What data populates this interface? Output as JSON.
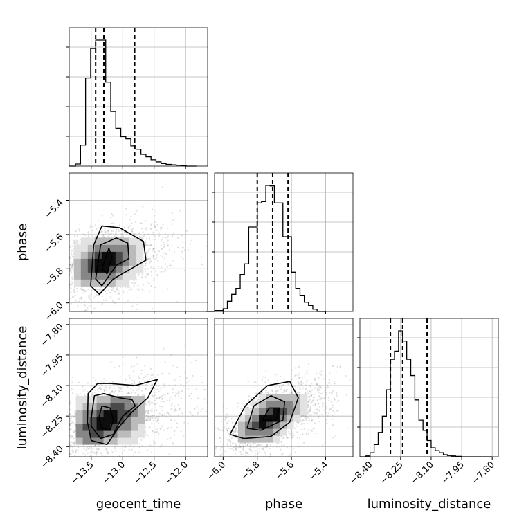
{
  "chart_data": {
    "type": "corner",
    "parameters": [
      "geocent_time",
      "phase",
      "luminosity_distance"
    ],
    "grid": true,
    "scatter_color": "#808080",
    "line_color": "#000000",
    "axes": {
      "geocent_time": {
        "range": [
          -13.85,
          -11.65
        ],
        "ticks": [
          -13.5,
          -13.0,
          -12.5,
          -12.0
        ],
        "tick_labels": [
          "−13.5",
          "−13.0",
          "−12.5",
          "−12.0"
        ]
      },
      "phase": {
        "range": [
          -6.05,
          -5.24
        ],
        "ticks": [
          -6.0,
          -5.8,
          -5.6,
          -5.4
        ],
        "tick_labels": [
          "−6.0",
          "−5.8",
          "−5.6",
          "−5.4"
        ]
      },
      "luminosity_distance": {
        "range": [
          -8.45,
          -7.77
        ],
        "ticks": [
          -8.4,
          -8.25,
          -8.1,
          -7.95,
          -7.8
        ],
        "tick_labels": [
          "−8.40",
          "−8.25",
          "−8.10",
          "−7.95",
          "−7.80"
        ]
      }
    },
    "histograms": {
      "geocent_time": {
        "bin_edges": [
          -13.85,
          -13.75,
          -13.67,
          -13.59,
          -13.51,
          -13.43,
          -13.35,
          -13.27,
          -13.19,
          -13.11,
          -13.03,
          -12.95,
          -12.87,
          -12.79,
          -12.71,
          -12.63,
          -12.55,
          -12.47,
          -12.39,
          -12.31,
          -12.23,
          -12.15,
          -12.07,
          -11.99,
          -11.91,
          -11.83
        ],
        "counts": [
          0,
          5,
          50,
          210,
          280,
          300,
          300,
          200,
          130,
          90,
          70,
          65,
          48,
          40,
          28,
          22,
          15,
          10,
          6,
          4,
          3,
          2,
          1,
          0,
          0
        ],
        "quantiles": [
          -13.43,
          -13.3,
          -12.81
        ]
      },
      "phase": {
        "bin_edges": [
          -6.1,
          -6.05,
          -6.0,
          -5.975,
          -5.95,
          -5.925,
          -5.9,
          -5.875,
          -5.85,
          -5.825,
          -5.8,
          -5.775,
          -5.75,
          -5.725,
          -5.7,
          -5.675,
          -5.65,
          -5.625,
          -5.6,
          -5.575,
          -5.55,
          -5.525,
          -5.5,
          -5.475,
          -5.45,
          -5.4
        ],
        "counts": [
          0,
          2,
          6,
          22,
          37,
          50,
          80,
          103,
          183,
          183,
          235,
          238,
          273,
          272,
          235,
          235,
          162,
          162,
          85,
          50,
          35,
          20,
          13,
          5,
          0
        ],
        "quantiles": [
          -5.8,
          -5.71,
          -5.62
        ]
      },
      "luminosity_distance": {
        "bin_edges": [
          -8.45,
          -8.42,
          -8.4,
          -8.38,
          -8.36,
          -8.34,
          -8.32,
          -8.3,
          -8.28,
          -8.26,
          -8.24,
          -8.22,
          -8.2,
          -8.18,
          -8.16,
          -8.14,
          -8.12,
          -8.1,
          -8.08,
          -8.06,
          -8.04,
          -8.02,
          -8.0,
          -7.98,
          -7.95,
          -7.8
        ],
        "counts": [
          0,
          2,
          10,
          30,
          60,
          100,
          165,
          240,
          260,
          310,
          285,
          240,
          200,
          140,
          90,
          65,
          40,
          22,
          15,
          10,
          5,
          3,
          2,
          1,
          0
        ],
        "quantiles": [
          -8.3,
          -8.24,
          -8.12
        ]
      }
    },
    "correlations": [
      {
        "x": "geocent_time",
        "y": "phase",
        "peak": [
          -13.28,
          -5.76
        ],
        "contours": [
          [
            [
              -13.33,
              -5.8
            ],
            [
              -13.22,
              -5.68
            ],
            [
              -13.17,
              -5.73
            ],
            [
              -13.25,
              -5.83
            ],
            [
              -13.33,
              -5.8
            ]
          ],
          [
            [
              -13.43,
              -5.86
            ],
            [
              -13.35,
              -5.66
            ],
            [
              -13.1,
              -5.62
            ],
            [
              -12.92,
              -5.65
            ],
            [
              -12.9,
              -5.74
            ],
            [
              -13.1,
              -5.78
            ],
            [
              -13.33,
              -5.9
            ],
            [
              -13.43,
              -5.86
            ]
          ],
          [
            [
              -13.51,
              -5.9
            ],
            [
              -13.46,
              -5.66
            ],
            [
              -13.33,
              -5.55
            ],
            [
              -13.05,
              -5.56
            ],
            [
              -12.67,
              -5.64
            ],
            [
              -12.63,
              -5.75
            ],
            [
              -12.82,
              -5.79
            ],
            [
              -13.15,
              -5.86
            ],
            [
              -13.37,
              -5.95
            ],
            [
              -13.51,
              -5.9
            ]
          ]
        ]
      },
      {
        "x": "geocent_time",
        "y": "luminosity_distance",
        "peak": [
          -13.25,
          -8.27
        ],
        "contours": [
          [
            [
              -13.38,
              -8.26
            ],
            [
              -13.33,
              -8.2
            ],
            [
              -13.2,
              -8.21
            ],
            [
              -13.15,
              -8.27
            ],
            [
              -13.2,
              -8.32
            ],
            [
              -13.33,
              -8.31
            ],
            [
              -13.38,
              -8.26
            ]
          ],
          [
            [
              -13.5,
              -8.26
            ],
            [
              -13.45,
              -8.15
            ],
            [
              -13.3,
              -8.14
            ],
            [
              -13.05,
              -8.16
            ],
            [
              -12.85,
              -8.17
            ],
            [
              -12.8,
              -8.2
            ],
            [
              -13.0,
              -8.25
            ],
            [
              -13.15,
              -8.34
            ],
            [
              -13.35,
              -8.36
            ],
            [
              -13.5,
              -8.3
            ],
            [
              -13.5,
              -8.26
            ]
          ],
          [
            [
              -13.56,
              -8.28
            ],
            [
              -13.55,
              -8.14
            ],
            [
              -13.4,
              -8.09
            ],
            [
              -13.2,
              -8.09
            ],
            [
              -12.8,
              -8.1
            ],
            [
              -12.45,
              -8.07
            ],
            [
              -12.6,
              -8.16
            ],
            [
              -12.85,
              -8.23
            ],
            [
              -13.05,
              -8.3
            ],
            [
              -13.25,
              -8.39
            ],
            [
              -13.5,
              -8.37
            ],
            [
              -13.56,
              -8.28
            ]
          ]
        ]
      },
      {
        "x": "phase",
        "y": "luminosity_distance",
        "peak": [
          -5.73,
          -8.26
        ],
        "contours": [
          [
            [
              -5.77,
              -8.27
            ],
            [
              -5.73,
              -8.21
            ],
            [
              -5.67,
              -8.21
            ],
            [
              -5.69,
              -8.27
            ],
            [
              -5.77,
              -8.27
            ]
          ],
          [
            [
              -5.86,
              -8.31
            ],
            [
              -5.82,
              -8.2
            ],
            [
              -5.72,
              -8.15
            ],
            [
              -5.64,
              -8.18
            ],
            [
              -5.65,
              -8.27
            ],
            [
              -5.78,
              -8.32
            ],
            [
              -5.86,
              -8.31
            ]
          ],
          [
            [
              -5.96,
              -8.34
            ],
            [
              -5.87,
              -8.2
            ],
            [
              -5.74,
              -8.1
            ],
            [
              -5.61,
              -8.08
            ],
            [
              -5.56,
              -8.16
            ],
            [
              -5.61,
              -8.28
            ],
            [
              -5.72,
              -8.35
            ],
            [
              -5.88,
              -8.36
            ],
            [
              -5.96,
              -8.34
            ]
          ]
        ]
      }
    ]
  }
}
